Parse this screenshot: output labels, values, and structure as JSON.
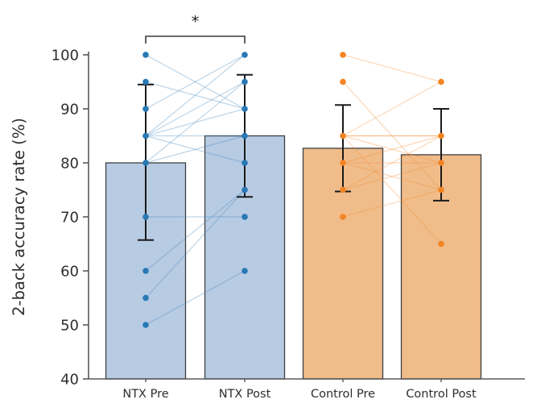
{
  "chart_data": {
    "type": "bar",
    "overlay": "paired-scatter-lines",
    "title": "",
    "ylabel": "2-back accuracy rate (%)",
    "xlabel": "",
    "ylim": [
      40,
      100
    ],
    "yticks": [
      40,
      50,
      60,
      70,
      80,
      90,
      100
    ],
    "grid": false,
    "legend_position": "none",
    "categories": [
      "NTX Pre",
      "NTX Post",
      "Control Pre",
      "Control Post"
    ],
    "bars": [
      {
        "category": "NTX Pre",
        "mean": 80.0,
        "whisker_low": 65.7,
        "whisker_high": 94.5,
        "group": "ntx"
      },
      {
        "category": "NTX Post",
        "mean": 85.0,
        "whisker_low": 73.7,
        "whisker_high": 96.3,
        "group": "ntx"
      },
      {
        "category": "Control Pre",
        "mean": 82.7,
        "whisker_low": 74.7,
        "whisker_high": 90.7,
        "group": "control"
      },
      {
        "category": "Control Post",
        "mean": 81.5,
        "whisker_low": 73.0,
        "whisker_high": 90.0,
        "group": "control"
      }
    ],
    "point_values": {
      "NTX Pre": [
        100,
        95,
        90,
        85,
        80,
        70,
        60,
        55,
        50
      ],
      "NTX Post": [
        100,
        95,
        90,
        85,
        80,
        75,
        70,
        60
      ],
      "Control Pre": [
        100,
        95,
        85,
        80,
        75,
        70
      ],
      "Control Post": [
        95,
        85,
        80,
        75,
        65
      ]
    },
    "paired_subjects": {
      "ntx": {
        "from": "NTX Pre",
        "to": "NTX Post",
        "pairs": [
          [
            100,
            90
          ],
          [
            95,
            90
          ],
          [
            90,
            100
          ],
          [
            85,
            100
          ],
          [
            85,
            95
          ],
          [
            85,
            90
          ],
          [
            85,
            85
          ],
          [
            85,
            80
          ],
          [
            80,
            95
          ],
          [
            80,
            85
          ],
          [
            70,
            70
          ],
          [
            60,
            75
          ],
          [
            55,
            75
          ],
          [
            50,
            60
          ]
        ]
      },
      "control": {
        "from": "Control Pre",
        "to": "Control Post",
        "pairs": [
          [
            100,
            95
          ],
          [
            95,
            75
          ],
          [
            85,
            95
          ],
          [
            85,
            85
          ],
          [
            85,
            85
          ],
          [
            85,
            80
          ],
          [
            85,
            65
          ],
          [
            80,
            85
          ],
          [
            80,
            80
          ],
          [
            80,
            75
          ],
          [
            75,
            85
          ],
          [
            75,
            80
          ],
          [
            70,
            75
          ]
        ]
      }
    },
    "significance": {
      "between": [
        "NTX Pre",
        "NTX Post"
      ],
      "label": "*"
    },
    "styles": {
      "ntx": {
        "bar_fill": "#b7cbe3",
        "point": "#2878b5",
        "line": "rgba(66,134,189,0.35)"
      },
      "control": {
        "bar_fill": "#f0bc8a",
        "point": "#f28422",
        "line": "rgba(244,142,54,0.35)"
      },
      "bar_edge": "#3f3f3f",
      "error_bar": "#1a1a1a",
      "axis": "#58585a",
      "text": "#2e2e2e"
    }
  }
}
